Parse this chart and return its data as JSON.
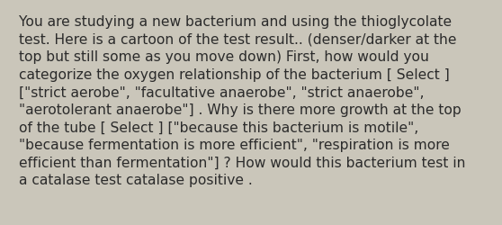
{
  "background_color": "#cac6ba",
  "text_color": "#2b2b2b",
  "font_size": 11.2,
  "font_family": "DejaVu Sans",
  "lines": [
    "You are studying a new bacterium and using the thioglycolate",
    "test. Here is a cartoon of the test result.. (denser/darker at the",
    "top but still some as you move down) First, how would you",
    "categorize the oxygen relationship of the bacterium [ Select ]",
    "[\"strict aerobe\", \"facultative anaerobe\", \"strict anaerobe\",",
    "\"aerotolerant anaerobe\"] . Why is there more growth at the top",
    "of the tube [ Select ] [\"because this bacterium is motile\",",
    "\"because fermentation is more efficient\", \"respiration is more",
    "efficient than fermentation\"] ? How would this bacterium test in",
    "a catalase test catalase positive ."
  ],
  "fig_width": 5.58,
  "fig_height": 2.51,
  "dpi": 100
}
